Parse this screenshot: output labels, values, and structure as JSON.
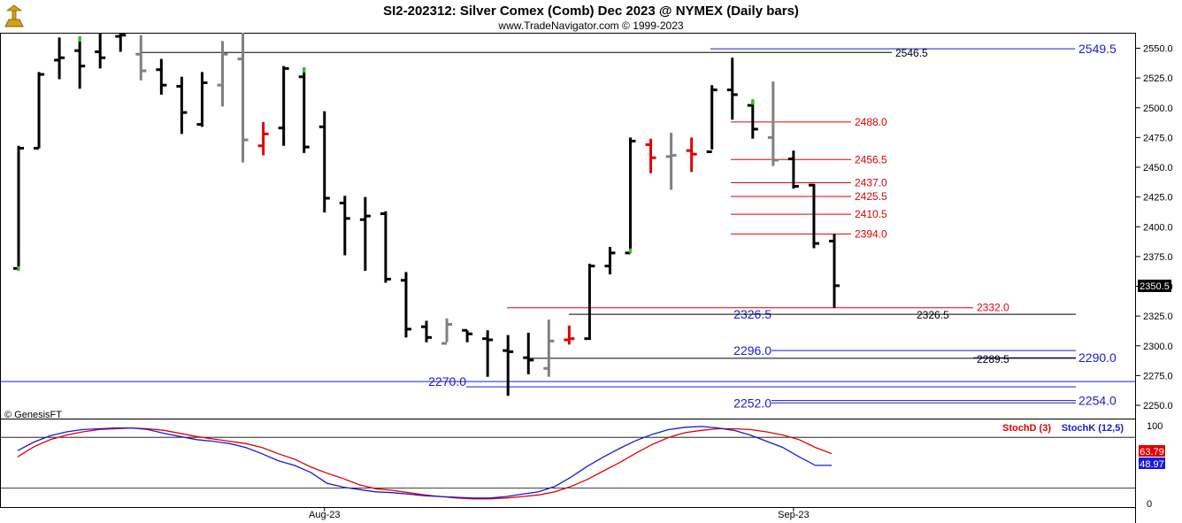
{
  "header": {
    "title": "SI2-202312:  Silver Comex (Comb) Dec 2023 @ NYMEX  (Daily bars)",
    "subtitle": "www.TradeNavigator.com © 1999-2023"
  },
  "copyright": "© GenesisFT",
  "logo_icon": "genesis-logo-icon",
  "colors": {
    "up": "#000000",
    "down": "#000000",
    "gray": "#808080",
    "red": "#e00000",
    "green": "#22cc22",
    "blue": "#1a1ad6",
    "stochD": "#e00000",
    "stochK": "#1a1ad6",
    "grid": "#000000"
  },
  "chart_data": [
    {
      "type": "ohlc",
      "ylim": [
        2242,
        2560
      ],
      "y_ticks": [
        "2550.0",
        "2525.0",
        "2500.0",
        "2475.0",
        "2450.0",
        "2425.0",
        "2400.0",
        "2375.0",
        "2350.0",
        "2325.0",
        "2300.0",
        "2275.0",
        "2250.0"
      ],
      "x_labels": [
        {
          "index": 15,
          "label": "Aug-23"
        },
        {
          "index": 38,
          "label": "Sep-23"
        }
      ],
      "last_price": "2350.5",
      "bars": [
        {
          "o": 2365,
          "h": 2468,
          "l": 2363,
          "c": 2466,
          "color": "black"
        },
        {
          "o": 2466,
          "h": 2530,
          "l": 2466,
          "c": 2528,
          "color": "black"
        },
        {
          "o": 2540,
          "h": 2559,
          "l": 2524,
          "c": 2542,
          "color": "black"
        },
        {
          "o": 2548,
          "h": 2560,
          "l": 2516,
          "c": 2535,
          "color": "black"
        },
        {
          "o": 2547,
          "h": 2563,
          "l": 2533,
          "c": 2542,
          "color": "black"
        },
        {
          "o": 2560,
          "h": 2563,
          "l": 2547,
          "c": 2561,
          "color": "black"
        },
        {
          "o": 2545,
          "h": 2561,
          "l": 2523,
          "c": 2531,
          "color": "gray"
        },
        {
          "o": 2532,
          "h": 2541,
          "l": 2511,
          "c": 2519,
          "color": "black"
        },
        {
          "o": 2518,
          "h": 2526,
          "l": 2478,
          "c": 2496,
          "color": "black"
        },
        {
          "o": 2486,
          "h": 2530,
          "l": 2484,
          "c": 2521,
          "color": "black"
        },
        {
          "o": 2519,
          "h": 2556,
          "l": 2501,
          "c": 2545,
          "color": "gray"
        },
        {
          "o": 2541,
          "h": 2563,
          "l": 2454,
          "c": 2473,
          "color": "gray"
        },
        {
          "o": 2468,
          "h": 2488,
          "l": 2460,
          "c": 2478,
          "color": "red"
        },
        {
          "o": 2483,
          "h": 2535,
          "l": 2468,
          "c": 2533,
          "color": "black"
        },
        {
          "o": 2526,
          "h": 2534,
          "l": 2462,
          "c": 2467,
          "color": "black"
        },
        {
          "o": 2484,
          "h": 2497,
          "l": 2412,
          "c": 2424,
          "color": "black"
        },
        {
          "o": 2420,
          "h": 2426,
          "l": 2376,
          "c": 2407,
          "color": "black"
        },
        {
          "o": 2406,
          "h": 2425,
          "l": 2363,
          "c": 2409,
          "color": "black"
        },
        {
          "o": 2411,
          "h": 2413,
          "l": 2353,
          "c": 2356,
          "color": "black"
        },
        {
          "o": 2355,
          "h": 2362,
          "l": 2307,
          "c": 2314,
          "color": "black"
        },
        {
          "o": 2316,
          "h": 2321,
          "l": 2303,
          "c": 2307,
          "color": "black"
        },
        {
          "o": 2302,
          "h": 2323,
          "l": 2303,
          "c": 2318,
          "color": "gray"
        },
        {
          "o": 2313,
          "h": 2313,
          "l": 2303,
          "c": 2310,
          "color": "black"
        },
        {
          "o": 2306,
          "h": 2313,
          "l": 2274,
          "c": 2305,
          "color": "black"
        },
        {
          "o": 2296,
          "h": 2309,
          "l": 2258,
          "c": 2295,
          "color": "black"
        },
        {
          "o": 2290,
          "h": 2311,
          "l": 2276,
          "c": 2288,
          "color": "black"
        },
        {
          "o": 2281,
          "h": 2322,
          "l": 2274,
          "c": 2304,
          "color": "gray"
        },
        {
          "o": 2305,
          "h": 2317,
          "l": 2301,
          "c": 2306,
          "color": "red"
        },
        {
          "o": 2306,
          "h": 2369,
          "l": 2305,
          "c": 2367,
          "color": "black"
        },
        {
          "o": 2367,
          "h": 2383,
          "l": 2360,
          "c": 2378,
          "color": "black"
        },
        {
          "o": 2378,
          "h": 2475,
          "l": 2378,
          "c": 2472,
          "color": "black"
        },
        {
          "o": 2469,
          "h": 2474,
          "l": 2445,
          "c": 2458,
          "color": "red"
        },
        {
          "o": 2459,
          "h": 2479,
          "l": 2431,
          "c": 2460,
          "color": "gray"
        },
        {
          "o": 2464,
          "h": 2475,
          "l": 2446,
          "c": 2461,
          "color": "red"
        },
        {
          "o": 2463,
          "h": 2519,
          "l": 2465,
          "c": 2515,
          "color": "black"
        },
        {
          "o": 2515,
          "h": 2542,
          "l": 2490,
          "c": 2511,
          "color": "black"
        },
        {
          "o": 2502,
          "h": 2507,
          "l": 2474,
          "c": 2482,
          "color": "black"
        },
        {
          "o": 2475,
          "h": 2522,
          "l": 2451,
          "c": 2456,
          "color": "gray"
        },
        {
          "o": 2457,
          "h": 2464,
          "l": 2432,
          "c": 2434,
          "color": "black"
        },
        {
          "o": 2435,
          "h": 2436,
          "l": 2382,
          "c": 2386,
          "color": "black"
        },
        {
          "o": 2388,
          "h": 2394,
          "l": 2332,
          "c": 2350.5,
          "color": "black"
        }
      ],
      "levels_red": [
        {
          "value": 2488.0,
          "label": "2488.0"
        },
        {
          "value": 2456.5,
          "label": "2456.5"
        },
        {
          "value": 2437.0,
          "label": "2437.0"
        },
        {
          "value": 2425.5,
          "label": "2425.5"
        },
        {
          "value": 2410.5,
          "label": "2410.5"
        },
        {
          "value": 2394.0,
          "label": "2394.0"
        },
        {
          "value": 2332.0,
          "label": "2332.0"
        }
      ],
      "levels_blue": [
        {
          "value": 2549.5,
          "label": "2549.5"
        },
        {
          "value": 2326.5,
          "label": "2326.5"
        },
        {
          "value": 2296.0,
          "label": "2296.0"
        },
        {
          "value": 2290.0,
          "label": "2290.0"
        },
        {
          "value": 2270.0,
          "label": "2270.0"
        },
        {
          "value": 2252.0,
          "label": "2252.0"
        },
        {
          "value": 2254.0,
          "label": "2254.0"
        }
      ],
      "levels_black": [
        {
          "value": 2546.5,
          "label": "2546.5"
        },
        {
          "value": 2326.5,
          "label": "2326.5"
        },
        {
          "value": 2289.5,
          "label": "2289.5"
        }
      ]
    },
    {
      "type": "line",
      "ylim": [
        0,
        100
      ],
      "y_ticks": [
        "100",
        "0"
      ],
      "grid_lines": [
        85,
        20
      ],
      "legend": [
        "StochD (3)",
        "StochK (12,5)"
      ],
      "last_values": {
        "stochD": "63.79",
        "stochK": "48.97"
      },
      "series": [
        {
          "name": "StochD (3)",
          "values": [
            60,
            73,
            82,
            88,
            92,
            95,
            96,
            97,
            96,
            94,
            90,
            86,
            83,
            80,
            77,
            72,
            64,
            57,
            47,
            39,
            32,
            24,
            19,
            17,
            14,
            11,
            9,
            7,
            6,
            6,
            7,
            9,
            11,
            15,
            22,
            31,
            42,
            53,
            65,
            76,
            85,
            91,
            94,
            96,
            96,
            95,
            92,
            88,
            82,
            72,
            64
          ]
        },
        {
          "name": "StochK (12,5)",
          "values": [
            68,
            79,
            87,
            92,
            95,
            96,
            97,
            97,
            95,
            90,
            86,
            82,
            80,
            77,
            72,
            64,
            55,
            49,
            40,
            26,
            21,
            18,
            15,
            14,
            12,
            10,
            9,
            8,
            7,
            7,
            9,
            12,
            15,
            22,
            34,
            48,
            60,
            71,
            81,
            89,
            95,
            98,
            99,
            97,
            94,
            88,
            80,
            72,
            60,
            49,
            49
          ]
        }
      ]
    }
  ]
}
